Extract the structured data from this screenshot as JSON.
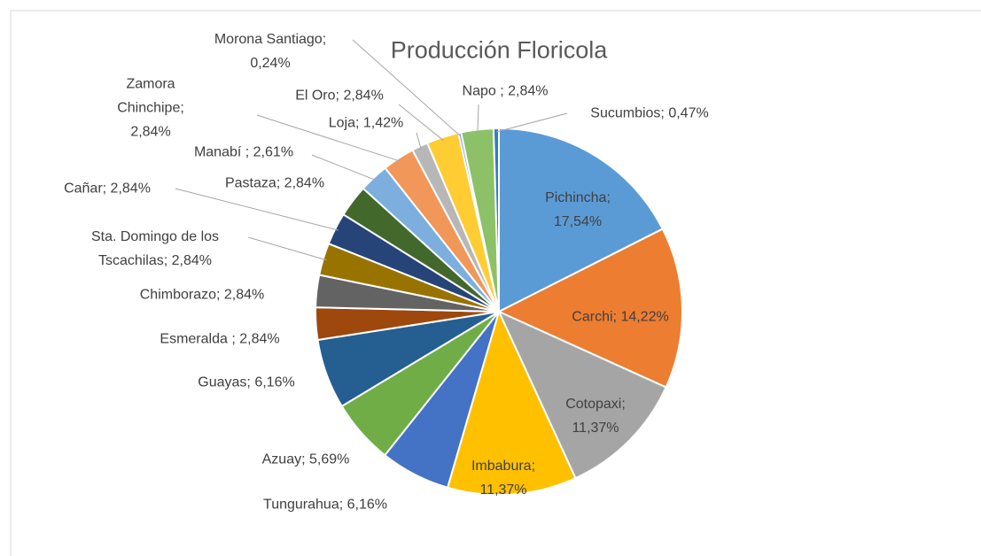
{
  "chart_data": {
    "type": "pie",
    "title": "Producción Floricola",
    "categories": [
      "Pichincha;",
      "Carchi;",
      "Cotopaxi;",
      "Imbabura;",
      "Tungurahua;",
      "Azuay;",
      "Guayas;",
      "Esmeralda ;",
      "Chimborazo;",
      "Sta. Domingo de los Tscachilas;",
      "Cañar;",
      "Pastaza;",
      "Manabí ;",
      "Zamora Chinchipe;",
      "Loja;",
      "El Oro;",
      "Morona Santiago;",
      "Napo ;",
      "Sucumbios;"
    ],
    "values": [
      17.54,
      14.22,
      11.37,
      11.37,
      6.16,
      5.69,
      6.16,
      2.84,
      2.84,
      2.84,
      2.84,
      2.84,
      2.61,
      2.84,
      1.42,
      2.84,
      0.24,
      2.84,
      0.47
    ],
    "value_labels": [
      "17,54%",
      "14,22%",
      "11,37%",
      "11,37%",
      "6,16%",
      "5,69%",
      "6,16%",
      "2,84%",
      "2,84%",
      "2,84%",
      "2,84%",
      "2,84%",
      "2,61%",
      "2,84%",
      "1,42%",
      "2,84%",
      "0,24%",
      "2,84%",
      "0,47%"
    ],
    "colors": [
      "#5b9bd5",
      "#ed7d31",
      "#a5a5a5",
      "#ffc000",
      "#4472c4",
      "#70ad47",
      "#255e91",
      "#9e480e",
      "#636363",
      "#997300",
      "#264478",
      "#43682b",
      "#7cafdd",
      "#f1975a",
      "#b7b7b7",
      "#ffcd33",
      "#698ed0",
      "#8cc168",
      "#327dc2"
    ]
  }
}
